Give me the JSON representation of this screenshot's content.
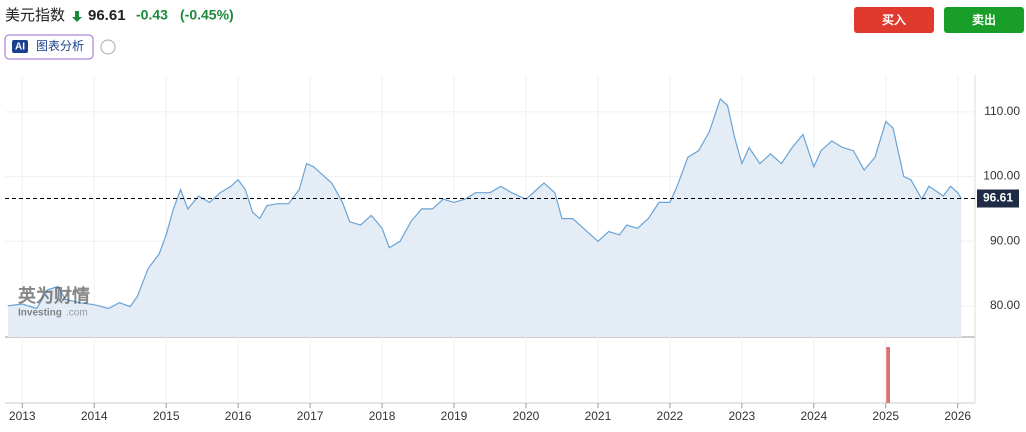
{
  "header": {
    "title": "美元指数",
    "price": 96.61,
    "change": "-0.43",
    "change_pct": "(-0.45%)",
    "ai_badge": "AI",
    "ai_label": "图表分析",
    "buy": "买入",
    "sell": "卖出"
  },
  "watermark": {
    "brand": "英为财情",
    "site": "Investing",
    "domain": ".com"
  },
  "chart_data": {
    "type": "line",
    "color": "#6aa3d6",
    "fill": "#e4edf6",
    "x": [
      2012.8,
      2013.0,
      2013.2,
      2013.35,
      2013.5,
      2013.6,
      2013.8,
      2014.0,
      2014.2,
      2014.35,
      2014.5,
      2014.6,
      2014.75,
      2014.9,
      2015.0,
      2015.1,
      2015.2,
      2015.3,
      2015.45,
      2015.6,
      2015.75,
      2015.9,
      2016.0,
      2016.1,
      2016.2,
      2016.3,
      2016.4,
      2016.55,
      2016.7,
      2016.85,
      2016.95,
      2017.05,
      2017.15,
      2017.3,
      2017.45,
      2017.55,
      2017.7,
      2017.85,
      2018.0,
      2018.1,
      2018.25,
      2018.4,
      2018.55,
      2018.7,
      2018.85,
      2019.0,
      2019.15,
      2019.3,
      2019.5,
      2019.65,
      2019.8,
      2019.9,
      2020.0,
      2020.15,
      2020.25,
      2020.4,
      2020.5,
      2020.65,
      2020.8,
      2021.0,
      2021.15,
      2021.3,
      2021.4,
      2021.55,
      2021.7,
      2021.85,
      2022.0,
      2022.1,
      2022.25,
      2022.4,
      2022.55,
      2022.7,
      2022.8,
      2022.9,
      2023.0,
      2023.1,
      2023.25,
      2023.4,
      2023.55,
      2023.7,
      2023.85,
      2024.0,
      2024.1,
      2024.25,
      2024.4,
      2024.55,
      2024.7,
      2024.85,
      2025.0,
      2025.1,
      2025.25,
      2025.35,
      2025.5,
      2025.6,
      2025.8,
      2025.9,
      2026.0,
      2026.05
    ],
    "values": [
      80,
      80.3,
      79.6,
      82.5,
      83,
      81,
      80.5,
      80.2,
      79.6,
      80.5,
      79.9,
      81.5,
      85.8,
      88,
      91,
      95,
      98,
      95,
      97,
      96,
      97.5,
      98.5,
      99.5,
      98,
      94.5,
      93.5,
      95.5,
      95.8,
      95.8,
      98,
      102,
      101.5,
      100.5,
      99,
      96,
      93,
      92.5,
      94,
      92,
      89,
      90,
      93,
      95,
      95,
      96.5,
      96,
      96.5,
      97.5,
      97.5,
      98.5,
      97.5,
      97,
      96.5,
      98,
      99,
      97.5,
      93.5,
      93.5,
      92,
      90,
      91.5,
      91,
      92.5,
      92,
      93.5,
      96,
      96,
      98.5,
      103,
      104,
      107,
      112,
      111,
      106,
      102,
      104.5,
      102,
      103.5,
      102,
      104.5,
      106.5,
      101.5,
      104,
      105.5,
      104.5,
      104,
      101,
      103,
      108.5,
      107.5,
      100,
      99.5,
      96.5,
      98.5,
      97,
      98.5,
      97.5,
      96.61
    ],
    "last_value": 96.61,
    "xlim": [
      2012.76,
      2026.24
    ],
    "xticks": [
      2013,
      2014,
      2015,
      2016,
      2017,
      2018,
      2019,
      2020,
      2021,
      2022,
      2023,
      2024,
      2025,
      2026
    ],
    "ylim": [
      75.2,
      115.7
    ],
    "yticks": [
      {
        "value": 80,
        "label": "80.00"
      },
      {
        "value": 90,
        "label": "90.00"
      },
      {
        "value": 100,
        "label": "100.00"
      },
      {
        "value": 110,
        "label": "110.00"
      }
    ],
    "grid": true
  }
}
